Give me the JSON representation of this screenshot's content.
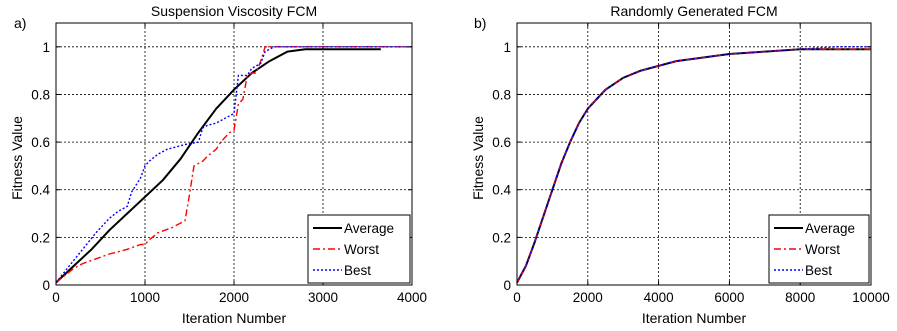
{
  "colors": {
    "average": "#000000",
    "worst": "#ff0000",
    "best": "#0000ff",
    "grid": "#000000",
    "background": "#ffffff"
  },
  "chart_data": [
    {
      "type": "line",
      "panel_label": "a)",
      "title": "Suspension Viscosity FCM",
      "xlabel": "Iteration Number",
      "ylabel": "Fitness Value",
      "xlim": [
        0,
        4000
      ],
      "ylim": [
        0,
        1.1
      ],
      "xticks": [
        0,
        1000,
        2000,
        3000,
        4000
      ],
      "yticks": [
        0,
        0.2,
        0.4,
        0.6,
        0.8,
        1
      ],
      "xtick_labels": [
        "0",
        "1000",
        "2000",
        "3000",
        "4000"
      ],
      "ytick_labels": [
        "0",
        "0.2",
        "0.4",
        "0.6",
        "0.8",
        "1"
      ],
      "grid": true,
      "legend_position": "bottom-right",
      "series": [
        {
          "name": "Average",
          "style": "solid",
          "color": "#000000",
          "x": [
            0,
            200,
            400,
            600,
            800,
            1000,
            1200,
            1400,
            1600,
            1800,
            2000,
            2200,
            2400,
            2600,
            2800,
            3000,
            3300,
            3650
          ],
          "y": [
            0.01,
            0.08,
            0.15,
            0.23,
            0.3,
            0.37,
            0.44,
            0.53,
            0.64,
            0.74,
            0.82,
            0.89,
            0.94,
            0.98,
            0.99,
            0.99,
            0.99,
            0.99
          ]
        },
        {
          "name": "Worst",
          "style": "dashdot",
          "color": "#ff0000",
          "x": [
            0,
            100,
            200,
            300,
            450,
            600,
            700,
            800,
            950,
            1000,
            1050,
            1150,
            1300,
            1450,
            1500,
            1550,
            1600,
            1650,
            1700,
            1800,
            1850,
            1900,
            1950,
            2000,
            2050,
            2100,
            2150,
            2200,
            2250,
            2300,
            2350,
            2400,
            2600,
            3000,
            3500,
            4000
          ],
          "y": [
            0.01,
            0.04,
            0.07,
            0.09,
            0.11,
            0.13,
            0.14,
            0.15,
            0.17,
            0.17,
            0.19,
            0.22,
            0.24,
            0.27,
            0.38,
            0.5,
            0.51,
            0.52,
            0.54,
            0.57,
            0.6,
            0.62,
            0.64,
            0.65,
            0.76,
            0.78,
            0.88,
            0.89,
            0.89,
            0.94,
            1.0,
            1.0,
            1.0,
            1.0,
            1.0,
            1.0
          ]
        },
        {
          "name": "Best",
          "style": "dotted",
          "color": "#0000ff",
          "x": [
            0,
            150,
            300,
            450,
            600,
            700,
            800,
            850,
            900,
            950,
            1000,
            1050,
            1150,
            1250,
            1350,
            1450,
            1600,
            1650,
            1700,
            1800,
            1900,
            2000,
            2050,
            2150,
            2200,
            2300,
            2350,
            2450,
            2600,
            3000,
            3500,
            4000
          ],
          "y": [
            0.01,
            0.08,
            0.15,
            0.22,
            0.28,
            0.31,
            0.33,
            0.39,
            0.42,
            0.45,
            0.5,
            0.52,
            0.55,
            0.57,
            0.58,
            0.59,
            0.6,
            0.66,
            0.67,
            0.68,
            0.7,
            0.72,
            0.88,
            0.88,
            0.91,
            0.93,
            0.98,
            1.0,
            1.0,
            1.0,
            1.0,
            1.0
          ]
        }
      ]
    },
    {
      "type": "line",
      "panel_label": "b)",
      "title": "Randomly Generated FCM",
      "xlabel": "Iteration Number",
      "ylabel": "Fitness Value",
      "xlim": [
        0,
        10000
      ],
      "ylim": [
        0,
        1.1
      ],
      "xticks": [
        0,
        2000,
        4000,
        6000,
        8000,
        10000
      ],
      "yticks": [
        0,
        0.2,
        0.4,
        0.6,
        0.8,
        1
      ],
      "xtick_labels": [
        "0",
        "2000",
        "4000",
        "6000",
        "8000",
        "10000"
      ],
      "ytick_labels": [
        "0",
        "0.2",
        "0.4",
        "0.6",
        "0.8",
        "1"
      ],
      "grid": true,
      "legend_position": "bottom-right",
      "series": [
        {
          "name": "Average",
          "style": "solid",
          "color": "#000000",
          "x": [
            0,
            250,
            500,
            750,
            1000,
            1250,
            1500,
            1750,
            2000,
            2250,
            2500,
            3000,
            3500,
            4000,
            4500,
            5000,
            6000,
            7000,
            8000,
            9000,
            10000
          ],
          "y": [
            0.01,
            0.08,
            0.18,
            0.29,
            0.4,
            0.51,
            0.6,
            0.68,
            0.74,
            0.78,
            0.82,
            0.87,
            0.9,
            0.92,
            0.94,
            0.95,
            0.97,
            0.98,
            0.99,
            0.99,
            0.99
          ]
        },
        {
          "name": "Worst",
          "style": "dashdot",
          "color": "#ff0000",
          "x": [
            0,
            250,
            500,
            750,
            1000,
            1250,
            1500,
            1750,
            2000,
            2250,
            2500,
            3000,
            3500,
            4000,
            4500,
            5000,
            6000,
            7000,
            8000,
            9000,
            10000
          ],
          "y": [
            0.01,
            0.08,
            0.18,
            0.29,
            0.4,
            0.51,
            0.6,
            0.68,
            0.74,
            0.78,
            0.82,
            0.87,
            0.9,
            0.92,
            0.94,
            0.95,
            0.97,
            0.98,
            0.99,
            0.99,
            0.99
          ]
        },
        {
          "name": "Best",
          "style": "dotted",
          "color": "#0000ff",
          "x": [
            0,
            250,
            500,
            750,
            1000,
            1250,
            1500,
            1750,
            2000,
            2250,
            2500,
            3000,
            3500,
            4000,
            4500,
            5000,
            6000,
            7000,
            8000,
            9000,
            10000
          ],
          "y": [
            0.01,
            0.08,
            0.18,
            0.29,
            0.4,
            0.51,
            0.6,
            0.68,
            0.74,
            0.78,
            0.82,
            0.87,
            0.9,
            0.92,
            0.94,
            0.95,
            0.97,
            0.98,
            0.99,
            1.0,
            1.0
          ]
        }
      ]
    }
  ]
}
